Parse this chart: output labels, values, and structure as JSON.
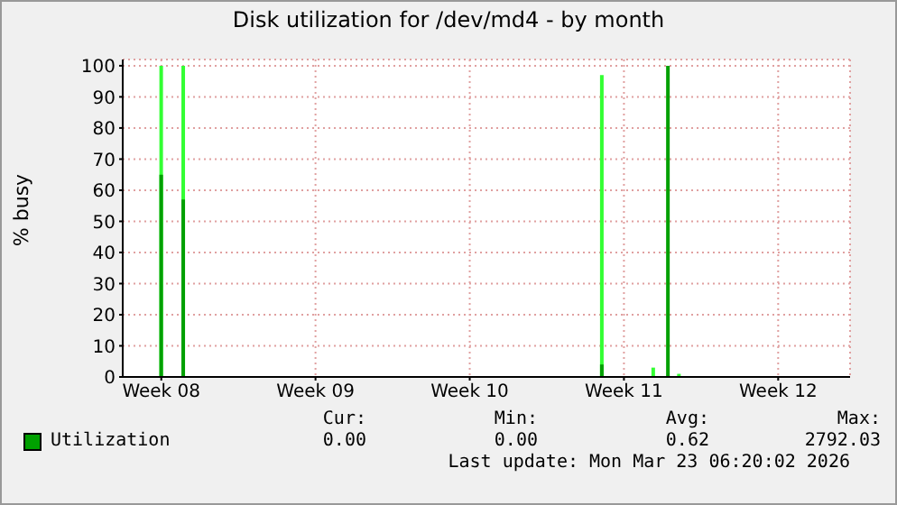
{
  "chart_data": {
    "type": "bar",
    "title": "Disk utilization for /dev/md4 - by month",
    "ylabel": "% busy",
    "xlim": [
      "2026-02-18T06:00",
      "2026-03-23T06:20"
    ],
    "xticks": [
      {
        "value": "2026-02-20T00:00",
        "label": "Week 08"
      },
      {
        "value": "2026-02-27T00:00",
        "label": "Week 09"
      },
      {
        "value": "2026-03-06T00:00",
        "label": "Week 10"
      },
      {
        "value": "2026-03-13T00:00",
        "label": "Week 11"
      },
      {
        "value": "2026-03-20T00:00",
        "label": "Week 12"
      }
    ],
    "ylim": [
      0,
      102
    ],
    "yticks": [
      0,
      10,
      20,
      30,
      40,
      50,
      60,
      70,
      80,
      90,
      100
    ],
    "series": [
      {
        "color": "#33ff33",
        "x": [
          "2026-02-20T00:00",
          "2026-02-21T00:00",
          "2026-03-12T00:00",
          "2026-03-14T08:00",
          "2026-03-15T12:00"
        ],
        "values": [
          100,
          100,
          97,
          3,
          1
        ]
      },
      {
        "name": "Utilization",
        "color": "#00a000",
        "x": [
          "2026-02-20T00:00",
          "2026-02-21T00:00",
          "2026-03-12T00:00",
          "2026-03-15T00:00"
        ],
        "values": [
          65,
          57,
          4,
          100
        ]
      }
    ],
    "annotations": [
      "Cur:",
      "Min:",
      "Avg:",
      "Max:",
      "0.00",
      "0.00",
      "0.62",
      "2792.03",
      "Last update: Mon Mar 23 06:20:02 2026"
    ],
    "grid": true,
    "legend": "bottom"
  }
}
